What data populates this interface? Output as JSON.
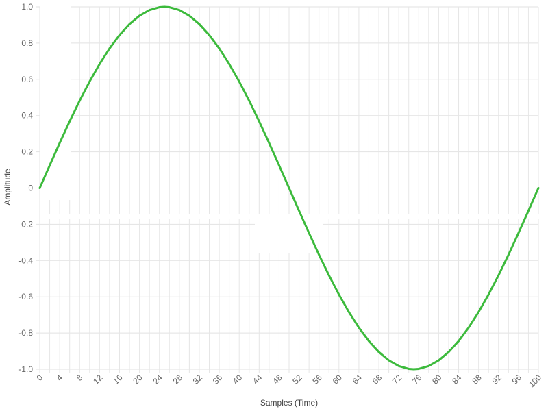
{
  "chart_data": {
    "type": "line",
    "xlabel": "Samples (Time)",
    "ylabel": "Amplitude",
    "xlim": [
      0,
      100
    ],
    "ylim": [
      -1.0,
      1.0
    ],
    "x_ticks": [
      "0",
      "4",
      "8",
      "12",
      "16",
      "20",
      "24",
      "28",
      "32",
      "36",
      "40",
      "44",
      "48",
      "52",
      "56",
      "60",
      "64",
      "68",
      "72",
      "76",
      "80",
      "84",
      "88",
      "92",
      "96",
      "100"
    ],
    "y_ticks": [
      "1.0",
      "0.8",
      "0.6",
      "0.4",
      "0.2",
      "0",
      "-0.2",
      "-0.4",
      "-0.6",
      "-0.8",
      "-1.0"
    ],
    "grid": true,
    "series": [
      {
        "color": "#3cba3c",
        "x": [
          0,
          2,
          4,
          6,
          8,
          10,
          12,
          14,
          16,
          18,
          20,
          22,
          24,
          25,
          26,
          28,
          30,
          32,
          34,
          36,
          38,
          40,
          42,
          44,
          46,
          48,
          50,
          52,
          54,
          56,
          58,
          60,
          62,
          64,
          66,
          68,
          70,
          72,
          74,
          75,
          76,
          78,
          80,
          82,
          84,
          86,
          88,
          90,
          92,
          94,
          96,
          98,
          100
        ],
        "y": [
          0,
          0.1253,
          0.2487,
          0.3681,
          0.4818,
          0.5878,
          0.6845,
          0.7705,
          0.8443,
          0.9048,
          0.9511,
          0.9823,
          0.998,
          1.0,
          0.998,
          0.9823,
          0.9511,
          0.9048,
          0.8443,
          0.7705,
          0.6845,
          0.5878,
          0.4818,
          0.3681,
          0.2487,
          0.1253,
          0,
          -0.1253,
          -0.2487,
          -0.3681,
          -0.4818,
          -0.5878,
          -0.6845,
          -0.7705,
          -0.8443,
          -0.9048,
          -0.9511,
          -0.9823,
          -0.998,
          -1.0,
          -0.998,
          -0.9823,
          -0.9511,
          -0.9048,
          -0.8443,
          -0.7705,
          -0.6845,
          -0.5878,
          -0.4818,
          -0.3681,
          -0.2487,
          -0.1253,
          0
        ]
      }
    ]
  }
}
